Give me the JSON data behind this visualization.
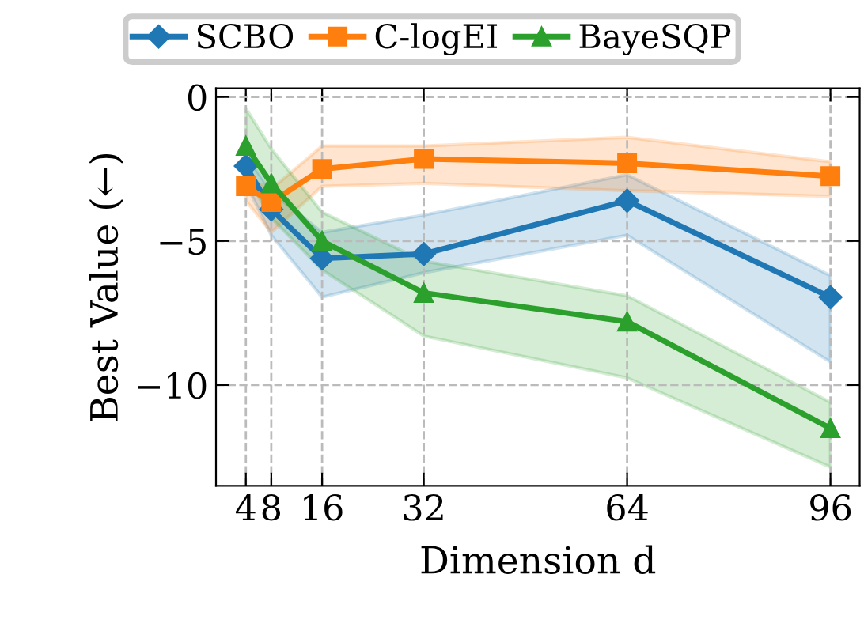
{
  "chart_data": {
    "type": "line",
    "xlabel": "Dimension d",
    "ylabel": "Best Value (←)",
    "x": [
      4,
      8,
      16,
      32,
      64,
      96
    ],
    "series": [
      {
        "name": "SCBO",
        "color": "#1f77b4",
        "marker": "diamond",
        "values": [
          -2.4,
          -3.9,
          -5.6,
          -5.45,
          -3.6,
          -6.95
        ],
        "lower": [
          -3.0,
          -4.8,
          -6.95,
          -6.1,
          -4.8,
          -9.2
        ],
        "upper": [
          -2.0,
          -3.3,
          -4.7,
          -4.1,
          -2.7,
          -6.2
        ]
      },
      {
        "name": "C-logEI",
        "color": "#ff7f0e",
        "marker": "square",
        "values": [
          -3.1,
          -3.65,
          -2.5,
          -2.15,
          -2.3,
          -2.75
        ],
        "lower": [
          -3.6,
          -4.7,
          -3.1,
          -3.0,
          -3.25,
          -3.45
        ],
        "upper": [
          -2.8,
          -3.2,
          -1.7,
          -1.7,
          -1.4,
          -2.25
        ]
      },
      {
        "name": "BayeSQP",
        "color": "#2ca02c",
        "marker": "triangle",
        "values": [
          -1.7,
          -3.0,
          -5.0,
          -6.8,
          -7.8,
          -11.5
        ],
        "lower": [
          -2.7,
          -4.2,
          -6.0,
          -8.3,
          -9.75,
          -12.85
        ],
        "upper": [
          -0.4,
          -1.8,
          -4.0,
          -5.7,
          -6.9,
          -10.6
        ]
      }
    ],
    "xlim": [
      -0.7,
      100.6
    ],
    "xticks": [
      4,
      8,
      16,
      32,
      64,
      96
    ],
    "ylim": [
      -13.5,
      0.3
    ],
    "yticks": [
      0,
      -5,
      -10
    ],
    "grid": true,
    "legend": "top",
    "line_style": "solid"
  }
}
